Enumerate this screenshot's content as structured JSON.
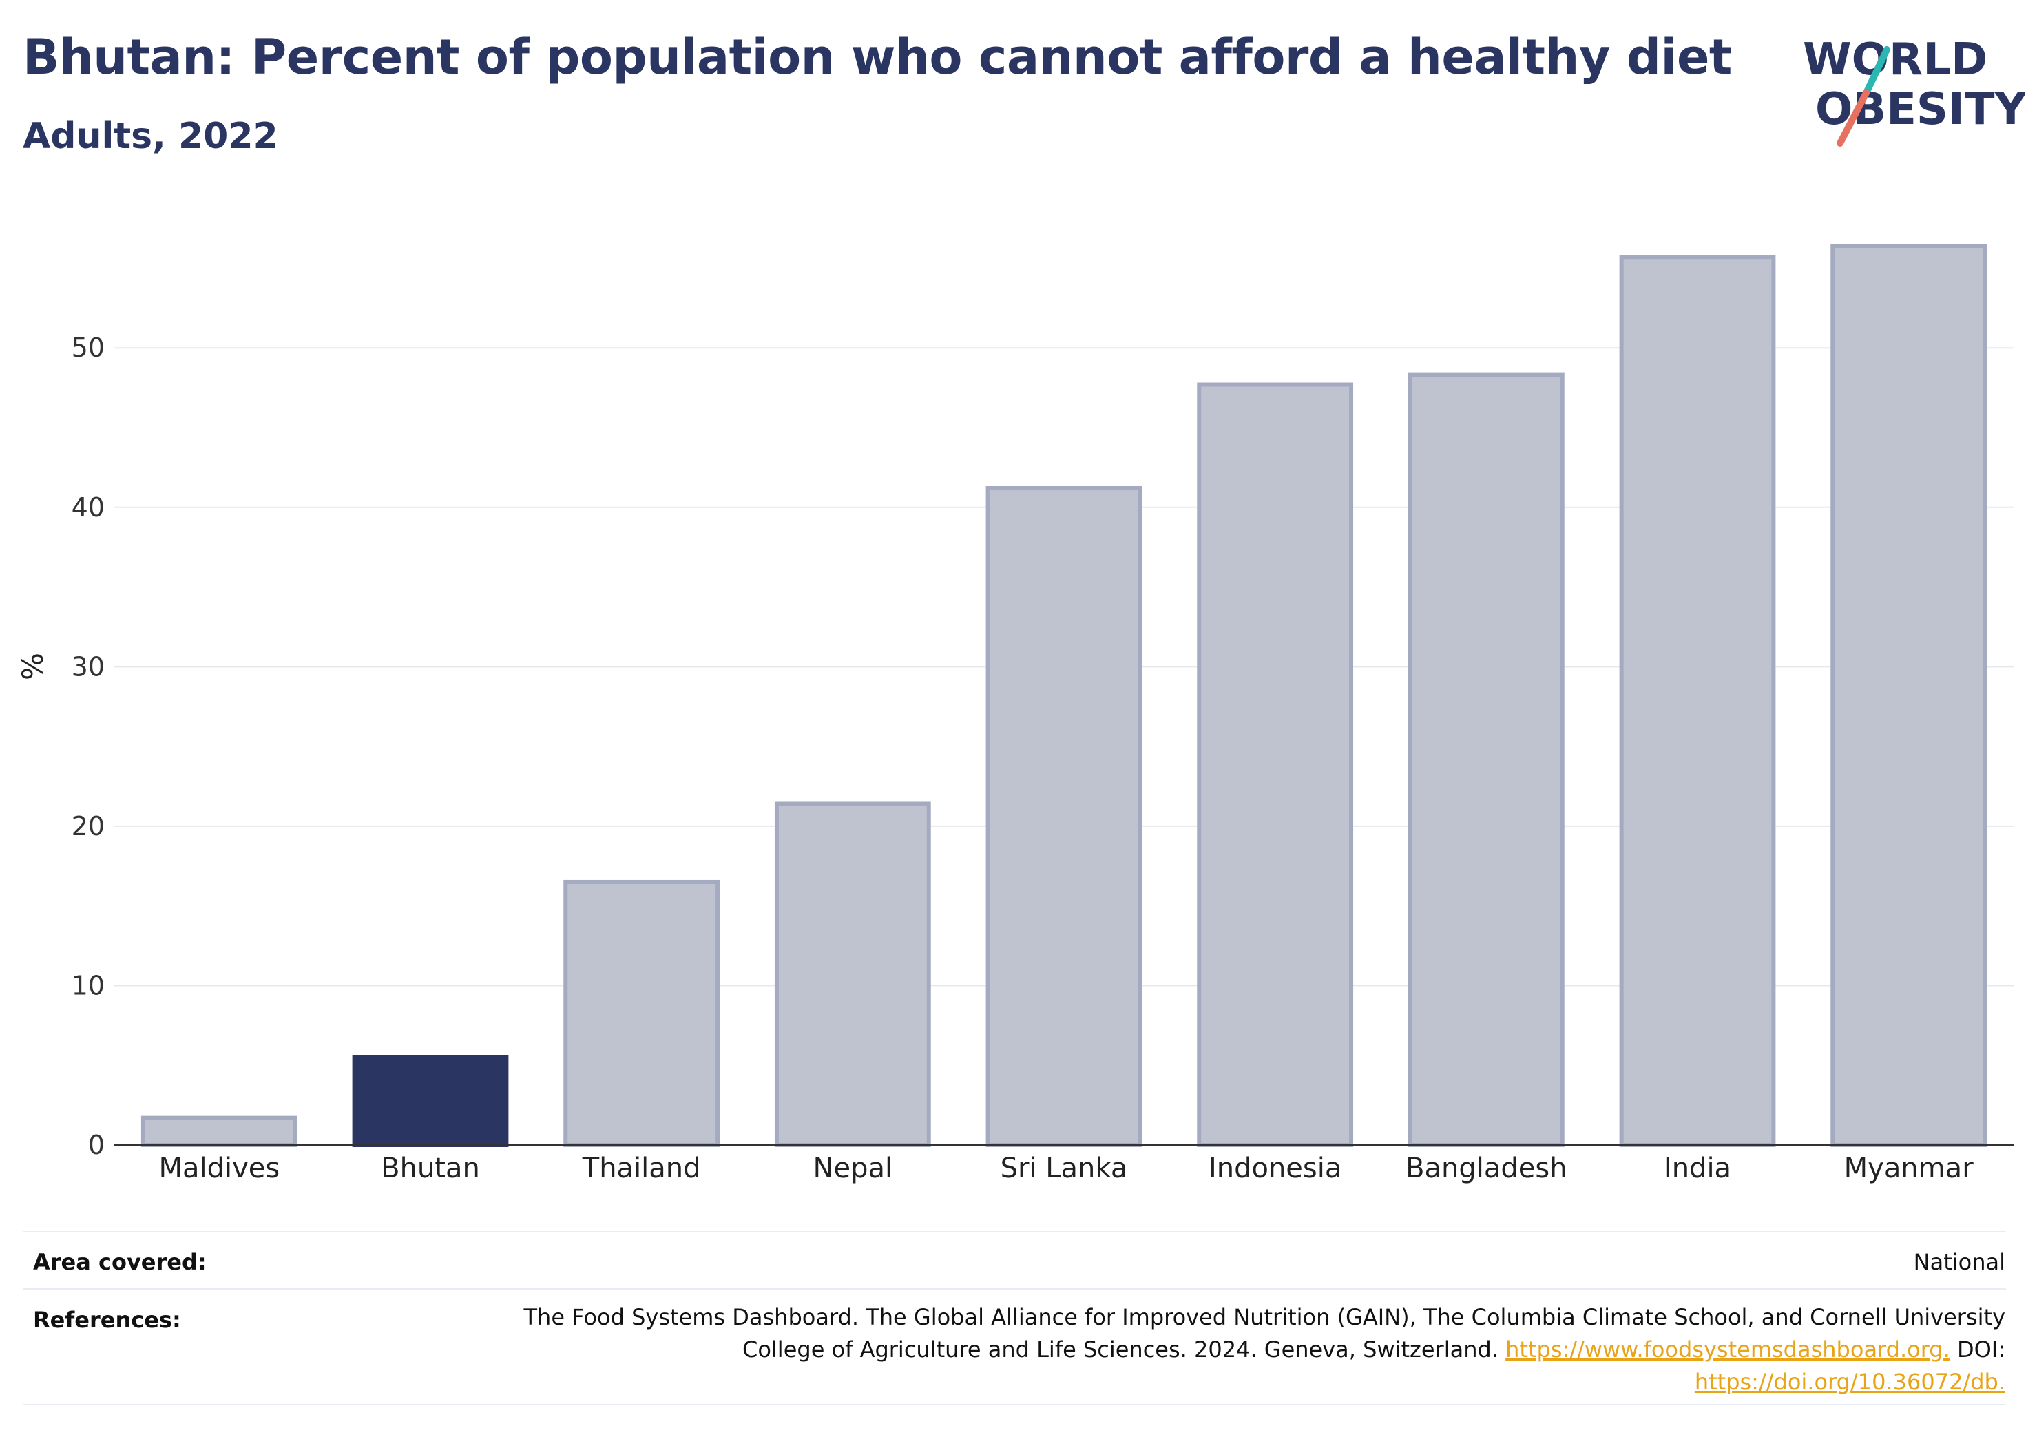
{
  "header": {
    "title": "Bhutan: Percent of population who cannot afford a healthy diet",
    "subtitle": "Adults, 2022"
  },
  "logo": {
    "line1": "WORLD",
    "line2": "OBESITY",
    "colors": {
      "text": "#2a3561",
      "teal": "#2ab7b2",
      "coral": "#e8705f"
    }
  },
  "chart_data": {
    "type": "bar",
    "categories": [
      "Maldives",
      "Bhutan",
      "Thailand",
      "Nepal",
      "Sri Lanka",
      "Indonesia",
      "Bangladesh",
      "India",
      "Myanmar"
    ],
    "values": [
      1.7,
      5.5,
      16.5,
      21.4,
      41.2,
      47.7,
      48.3,
      55.7,
      56.4
    ],
    "highlight": "Bhutan",
    "ylabel": "%",
    "ylim": [
      0,
      58
    ],
    "yticks": [
      0,
      10,
      20,
      30,
      40,
      50
    ],
    "grid": true,
    "colors": {
      "bar": "#bfc3d0",
      "bar_border": "#a4aac0",
      "highlight": "#2a3561",
      "grid": "#e6e8ee"
    }
  },
  "meta": {
    "area_label": "Area covered:",
    "area_value": "National",
    "references_label": "References:",
    "references_line1": "The Food Systems Dashboard. The Global Alliance for Improved Nutrition (GAIN), The Columbia Climate School, and Cornell University",
    "references_line2_text": "College of Agriculture and Life Sciences. 2024. Geneva, Switzerland.",
    "references_link1": "https://www.foodsystemsdashboard.org.",
    "references_doi_label": "DOI:",
    "references_link2": "https://doi.org/10.36072/db."
  }
}
